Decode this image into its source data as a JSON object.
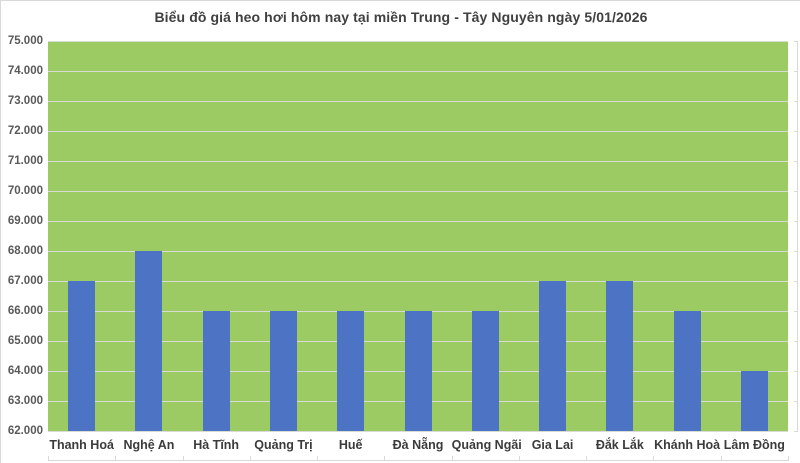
{
  "chart_data": {
    "type": "bar",
    "title": "Biểu đồ giá heo hơi hôm nay tại miền Trung - Tây Nguyên ngày 5/01/2026",
    "categories": [
      "Thanh Hoá",
      "Nghệ An",
      "Hà Tĩnh",
      "Quảng Trị",
      "Huế",
      "Đà Nẵng",
      "Quảng Ngãi",
      "Gia Lai",
      "Đắk Lắk",
      "Khánh Hoà",
      "Lâm Đồng"
    ],
    "values": [
      67000,
      68000,
      66000,
      66000,
      66000,
      66000,
      66000,
      67000,
      67000,
      66000,
      64000
    ],
    "xlabel": "",
    "ylabel": "",
    "ylim": [
      62000,
      75000
    ],
    "ytick_step": 1000,
    "ytick_labels": [
      "75.000",
      "74.000",
      "73.000",
      "72.000",
      "71.000",
      "70.000",
      "69.000",
      "68.000",
      "67.000",
      "66.000",
      "65.000",
      "64.000",
      "63.000",
      "62.000"
    ],
    "grid": true,
    "legend_position": "none",
    "colors": {
      "bar": "#4C73C4",
      "plot_background": "#9CCB63",
      "gridline": "#D9DCD2",
      "axis_line": "#D9D9D9",
      "title_text": "#404040",
      "category_text": "#3B3B3B",
      "ytick_text": "#595959",
      "canvas_background": "#FFFFFF"
    }
  }
}
